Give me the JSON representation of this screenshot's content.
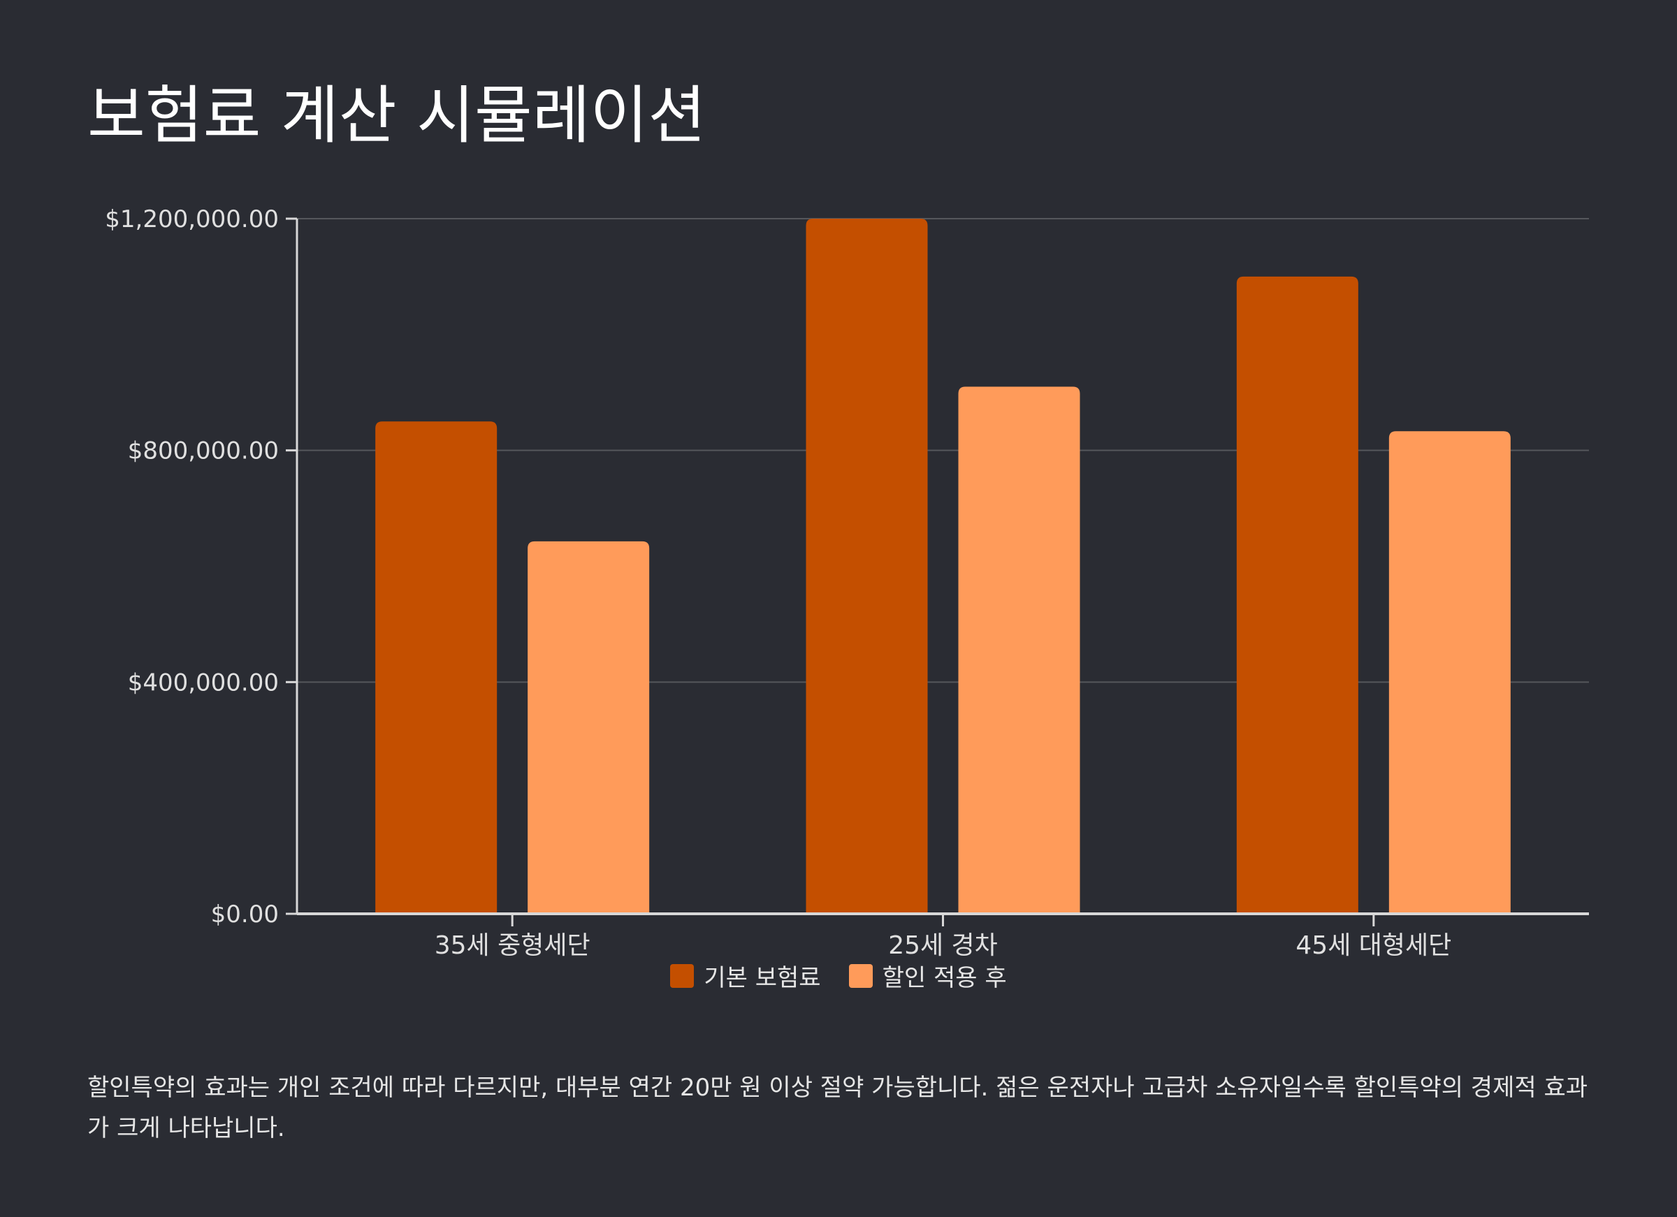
{
  "title": "보험료 계산 시뮬레이션",
  "caption": "할인특약의 효과는 개인 조건에 따라 다르지만, 대부분 연간 20만 원 이상 절약 가능합니다. 젊은 운전자나 고급차 소유자일수록 할인특약의 경제적 효과가 크게 나타납니다.",
  "chart_data": {
    "type": "bar",
    "categories": [
      "35세 중형세단",
      "25세 경차",
      "45세 대형세단"
    ],
    "series": [
      {
        "name": "기본 보험료",
        "color": "#c44f00",
        "values": [
          850000,
          1200000,
          1100000
        ]
      },
      {
        "name": "할인 적용 후",
        "color": "#ff9b5a",
        "values": [
          643000,
          910000,
          833000
        ]
      }
    ],
    "yticks": [
      0,
      400000,
      800000,
      1200000
    ],
    "ytick_labels": [
      "$0.00",
      "$400,000.00",
      "$800,000.00",
      "$1,200,000.00"
    ],
    "ylim": [
      0,
      1200000
    ],
    "xlabel": "",
    "ylabel": "",
    "grid": true,
    "legend_position": "bottom"
  }
}
